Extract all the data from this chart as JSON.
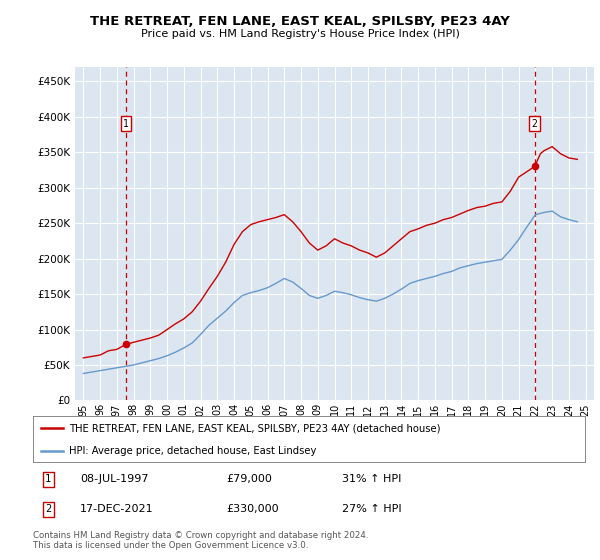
{
  "title": "THE RETREAT, FEN LANE, EAST KEAL, SPILSBY, PE23 4AY",
  "subtitle": "Price paid vs. HM Land Registry's House Price Index (HPI)",
  "legend_line1": "THE RETREAT, FEN LANE, EAST KEAL, SPILSBY, PE23 4AY (detached house)",
  "legend_line2": "HPI: Average price, detached house, East Lindsey",
  "footer": "Contains HM Land Registry data © Crown copyright and database right 2024.\nThis data is licensed under the Open Government Licence v3.0.",
  "point1_date": "08-JUL-1997",
  "point1_price": "£79,000",
  "point1_hpi": "31% ↑ HPI",
  "point2_date": "17-DEC-2021",
  "point2_price": "£330,000",
  "point2_hpi": "27% ↑ HPI",
  "red_color": "#cc0000",
  "blue_color": "#6699cc",
  "bg_color": "#dce6f1",
  "grid_color": "#ffffff",
  "ylim": [
    0,
    470000
  ],
  "yticks": [
    0,
    50000,
    100000,
    150000,
    200000,
    250000,
    300000,
    350000,
    400000,
    450000
  ],
  "xlim_start": 1994.5,
  "xlim_end": 2025.5,
  "p1x": 1997.54,
  "p1y": 79000,
  "p2x": 2021.96,
  "p2y": 330000,
  "red_x": [
    1995.0,
    1995.5,
    1996.0,
    1996.5,
    1997.0,
    1997.54,
    1998.0,
    1998.5,
    1999.0,
    1999.5,
    2000.0,
    2000.5,
    2001.0,
    2001.5,
    2002.0,
    2002.5,
    2003.0,
    2003.5,
    2004.0,
    2004.5,
    2005.0,
    2005.5,
    2006.0,
    2006.5,
    2007.0,
    2007.5,
    2008.0,
    2008.5,
    2009.0,
    2009.5,
    2010.0,
    2010.5,
    2011.0,
    2011.5,
    2012.0,
    2012.5,
    2013.0,
    2013.5,
    2014.0,
    2014.5,
    2015.0,
    2015.5,
    2016.0,
    2016.5,
    2017.0,
    2017.5,
    2018.0,
    2018.5,
    2019.0,
    2019.5,
    2020.0,
    2020.5,
    2021.0,
    2021.96,
    2022.3,
    2022.5,
    2023.0,
    2023.5,
    2024.0,
    2024.5
  ],
  "red_y": [
    60000,
    62000,
    64000,
    70000,
    72000,
    79000,
    82000,
    85000,
    88000,
    92000,
    100000,
    108000,
    115000,
    125000,
    140000,
    158000,
    175000,
    195000,
    220000,
    238000,
    248000,
    252000,
    255000,
    258000,
    262000,
    252000,
    238000,
    222000,
    212000,
    218000,
    228000,
    222000,
    218000,
    212000,
    208000,
    202000,
    208000,
    218000,
    228000,
    238000,
    242000,
    247000,
    250000,
    255000,
    258000,
    263000,
    268000,
    272000,
    274000,
    278000,
    280000,
    295000,
    315000,
    330000,
    348000,
    352000,
    358000,
    348000,
    342000,
    340000
  ],
  "blue_x": [
    1995.0,
    1995.5,
    1996.0,
    1996.5,
    1997.0,
    1997.5,
    1998.0,
    1998.5,
    1999.0,
    1999.5,
    2000.0,
    2000.5,
    2001.0,
    2001.5,
    2002.0,
    2002.5,
    2003.0,
    2003.5,
    2004.0,
    2004.5,
    2005.0,
    2005.5,
    2006.0,
    2006.5,
    2007.0,
    2007.5,
    2008.0,
    2008.5,
    2009.0,
    2009.5,
    2010.0,
    2010.5,
    2011.0,
    2011.5,
    2012.0,
    2012.5,
    2013.0,
    2013.5,
    2014.0,
    2014.5,
    2015.0,
    2015.5,
    2016.0,
    2016.5,
    2017.0,
    2017.5,
    2018.0,
    2018.5,
    2019.0,
    2019.5,
    2020.0,
    2020.5,
    2021.0,
    2021.5,
    2022.0,
    2022.5,
    2023.0,
    2023.5,
    2024.0,
    2024.5
  ],
  "blue_y": [
    38000,
    40000,
    42000,
    44000,
    46000,
    48000,
    50000,
    53000,
    56000,
    59000,
    63000,
    68000,
    74000,
    81000,
    93000,
    106000,
    116000,
    126000,
    138000,
    148000,
    152000,
    155000,
    159000,
    165000,
    172000,
    167000,
    158000,
    148000,
    144000,
    148000,
    154000,
    152000,
    149000,
    145000,
    142000,
    140000,
    144000,
    150000,
    157000,
    165000,
    169000,
    172000,
    175000,
    179000,
    182000,
    187000,
    190000,
    193000,
    195000,
    197000,
    199000,
    212000,
    227000,
    245000,
    262000,
    265000,
    267000,
    259000,
    255000,
    252000
  ]
}
